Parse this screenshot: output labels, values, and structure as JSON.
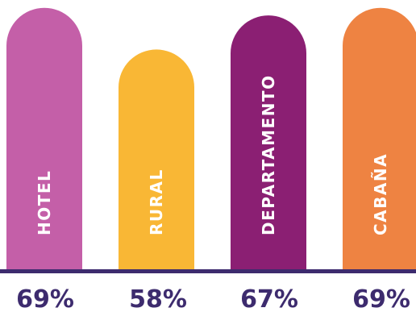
{
  "chart_data": {
    "type": "bar",
    "categories": [
      "HOTEL",
      "RURAL",
      "DEPARTAMENTO",
      "CABAÑA"
    ],
    "values": [
      69,
      58,
      67,
      69
    ],
    "value_labels": [
      "69%",
      "58%",
      "67%",
      "69%"
    ],
    "colors": [
      "#C45FA8",
      "#F9B735",
      "#8B1F73",
      "#EE8342"
    ],
    "baseline_color": "#3D2B6E",
    "title": "",
    "xlabel": "",
    "ylabel": "",
    "ylim": [
      0,
      75
    ],
    "grid": false,
    "legend": "none"
  }
}
